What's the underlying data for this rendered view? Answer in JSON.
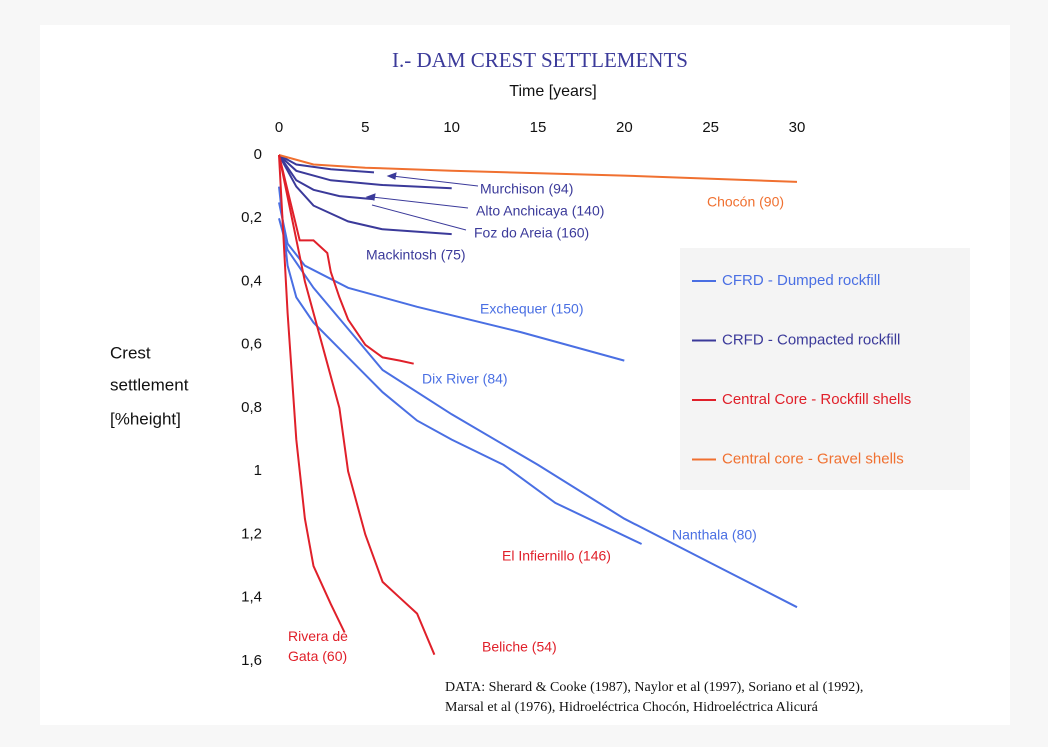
{
  "chart_data": {
    "type": "line",
    "title": "I.- DAM CREST SETTLEMENTS",
    "x_label": "Time [years]",
    "y_label": [
      "Crest",
      "settlement",
      "[%height]"
    ],
    "note": [
      "DATA: Sherard & Cooke (1987), Naylor et al (1997), Soriano et al (1992),",
      "Marsal et al (1976), Hidroeléctrica Chocón, Hidroeléctrica Alicurá"
    ],
    "xlim": [
      0,
      30
    ],
    "xticks": [
      0,
      5,
      10,
      15,
      20,
      25,
      30
    ],
    "ylim": [
      0,
      1.6
    ],
    "y_inverted": true,
    "yticks": [
      0,
      {
        "value": 0.2,
        "label": "0,2"
      },
      {
        "value": 0.4,
        "label": "0,4"
      },
      {
        "value": 0.6,
        "label": "0,6"
      },
      {
        "value": 0.8,
        "label": "0,8"
      },
      1,
      {
        "value": 1.2,
        "label": "1,2"
      },
      {
        "value": 1.4,
        "label": "1,4"
      },
      {
        "value": 1.6,
        "label": "1,6"
      }
    ],
    "legend": [
      {
        "label": "CFRD - Dumped rockfill",
        "color": "#4a6fe3"
      },
      {
        "label": "CRFD - Compacted rockfill",
        "color": "#3b3a9a"
      },
      {
        "label": "Central Core - Rockfill shells",
        "color": "#e0202a"
      },
      {
        "label": "Central core - Gravel shells",
        "color": "#f07030"
      }
    ],
    "series": [
      {
        "name": "Murchison (94)",
        "color": "#3b3a9a",
        "x": [
          0,
          1,
          3,
          5.5
        ],
        "values": [
          0,
          0.03,
          0.045,
          0.055
        ]
      },
      {
        "name": "Alto Anchicaya (140)",
        "color": "#3b3a9a",
        "x": [
          0,
          1,
          3,
          6,
          10
        ],
        "values": [
          0,
          0.05,
          0.08,
          0.095,
          0.105
        ]
      },
      {
        "name": "Foz do Areia (160)",
        "color": "#3b3a9a",
        "x": [
          0,
          1,
          2,
          4,
          6,
          10
        ],
        "values": [
          0,
          0.1,
          0.16,
          0.21,
          0.235,
          0.25
        ]
      },
      {
        "name": "Mackintosh (75)",
        "color": "#3b3a9a",
        "x": [
          0,
          1,
          2,
          3.5,
          5.5
        ],
        "values": [
          0,
          0.08,
          0.11,
          0.13,
          0.14
        ]
      },
      {
        "name": "Chocón (90)",
        "color": "#f07030",
        "x": [
          0,
          2,
          5,
          10,
          20,
          30
        ],
        "values": [
          0,
          0.03,
          0.04,
          0.05,
          0.065,
          0.085
        ]
      },
      {
        "name": "Exchequer (150)",
        "color": "#4a6fe3",
        "x": [
          0,
          0.5,
          1.5,
          4,
          8,
          14,
          20
        ],
        "values": [
          0.15,
          0.28,
          0.35,
          0.42,
          0.48,
          0.56,
          0.65
        ]
      },
      {
        "name": "Dix River (84)",
        "color": "#4a6fe3",
        "x": [
          0,
          0.5,
          2,
          4,
          6,
          10,
          15,
          20,
          25,
          30
        ],
        "values": [
          0.2,
          0.3,
          0.42,
          0.55,
          0.68,
          0.82,
          0.98,
          1.15,
          1.29,
          1.43
        ]
      },
      {
        "name": "Nanthala (80)",
        "color": "#4a6fe3",
        "x": [
          0,
          0.5,
          1,
          2,
          4,
          6,
          8,
          10,
          13,
          16,
          21
        ],
        "values": [
          0.1,
          0.35,
          0.45,
          0.53,
          0.64,
          0.75,
          0.84,
          0.9,
          0.98,
          1.1,
          1.23
        ]
      },
      {
        "name": "El Infiernillo (146)",
        "color": "#e0202a",
        "x": [
          0,
          1.2,
          2,
          2.8,
          3,
          3.5,
          4,
          5,
          6,
          7,
          7.8
        ],
        "values": [
          0,
          0.27,
          0.27,
          0.31,
          0.37,
          0.45,
          0.52,
          0.6,
          0.64,
          0.65,
          0.66
        ]
      },
      {
        "name": "Beliche (54)",
        "color": "#e0202a",
        "x": [
          0,
          1.5,
          2.5,
          3.5,
          4,
          5,
          6,
          7,
          8,
          9
        ],
        "values": [
          0,
          0.4,
          0.6,
          0.8,
          1.0,
          1.2,
          1.35,
          1.4,
          1.45,
          1.58
        ]
      },
      {
        "name": "Rivera de Gata (60)",
        "color": "#e0202a",
        "x": [
          0,
          0.5,
          1,
          1.5,
          2,
          3,
          3.8
        ],
        "values": [
          0,
          0.5,
          0.9,
          1.15,
          1.3,
          1.42,
          1.51
        ]
      }
    ]
  }
}
